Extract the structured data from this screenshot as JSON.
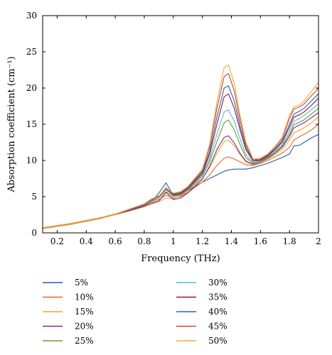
{
  "chart_data": {
    "type": "line",
    "title": "",
    "xlabel": "Frequency (THz)",
    "ylabel": "Absorption coefficient (cm⁻¹)",
    "xlim": [
      0.1,
      2.0
    ],
    "ylim": [
      0,
      30
    ],
    "x_ticks": [
      0.2,
      0.4,
      0.6,
      0.8,
      1.0,
      1.2,
      1.4,
      1.6,
      1.8,
      2.0
    ],
    "x_tick_labels": [
      "0.2",
      "0.4",
      "0.6",
      "0.8",
      "1",
      "1.2",
      "1.4",
      "1.6",
      "1.8",
      "2"
    ],
    "y_ticks": [
      0,
      5,
      10,
      15,
      20,
      25,
      30
    ],
    "y_tick_labels": [
      "0",
      "5",
      "10",
      "15",
      "20",
      "25",
      "30"
    ],
    "grid": false,
    "legend_position": "below",
    "x": [
      0.1,
      0.2,
      0.3,
      0.4,
      0.5,
      0.6,
      0.7,
      0.8,
      0.85,
      0.9,
      0.95,
      1.0,
      1.05,
      1.1,
      1.2,
      1.25,
      1.3,
      1.35,
      1.38,
      1.42,
      1.46,
      1.5,
      1.55,
      1.6,
      1.65,
      1.7,
      1.75,
      1.8,
      1.83,
      1.87,
      1.9,
      1.95,
      2.0
    ],
    "series": [
      {
        "name": "5%",
        "color": "#1f5fb0",
        "values": [
          0.6,
          0.9,
          1.2,
          1.6,
          2.0,
          2.6,
          3.1,
          3.8,
          4.3,
          5.5,
          6.9,
          5.2,
          5.3,
          5.8,
          7.0,
          7.5,
          8.0,
          8.5,
          8.7,
          8.8,
          8.8,
          8.8,
          9.0,
          9.3,
          9.6,
          10.0,
          10.4,
          10.9,
          12.0,
          12.1,
          12.5,
          13.1,
          13.6
        ]
      },
      {
        "name": "10%",
        "color": "#e8632a",
        "values": [
          0.6,
          0.9,
          1.2,
          1.6,
          2.0,
          2.6,
          3.1,
          3.8,
          4.3,
          4.6,
          5.2,
          4.8,
          5.0,
          5.6,
          7.0,
          8.0,
          9.3,
          10.3,
          10.5,
          10.2,
          9.8,
          9.4,
          9.3,
          9.6,
          10.0,
          10.5,
          11.0,
          11.8,
          12.8,
          13.3,
          13.6,
          14.2,
          15.0
        ]
      },
      {
        "name": "15%",
        "color": "#f0a030",
        "values": [
          0.6,
          0.9,
          1.2,
          1.6,
          2.0,
          2.5,
          3.0,
          3.6,
          4.0,
          4.3,
          4.8,
          4.7,
          5.1,
          5.8,
          7.5,
          9.0,
          11.0,
          12.6,
          12.8,
          12.0,
          10.8,
          9.8,
          9.4,
          9.7,
          10.2,
          10.8,
          11.5,
          12.8,
          13.8,
          14.2,
          14.5,
          15.2,
          16.0
        ]
      },
      {
        "name": "20%",
        "color": "#7b2d8e",
        "values": [
          0.7,
          1.0,
          1.3,
          1.7,
          2.1,
          2.6,
          3.1,
          3.7,
          4.1,
          4.4,
          5.6,
          4.6,
          4.8,
          5.5,
          7.4,
          9.2,
          11.5,
          13.2,
          13.4,
          12.4,
          11.0,
          9.9,
          9.5,
          9.8,
          10.3,
          11.0,
          11.8,
          13.3,
          14.5,
          14.9,
          15.2,
          15.9,
          16.6
        ]
      },
      {
        "name": "25%",
        "color": "#6a9a2e",
        "values": [
          0.7,
          1.0,
          1.3,
          1.7,
          2.1,
          2.6,
          3.2,
          3.9,
          4.4,
          4.8,
          5.7,
          5.0,
          5.2,
          5.9,
          7.8,
          9.8,
          12.6,
          15.2,
          15.6,
          14.2,
          12.2,
          10.4,
          9.6,
          9.8,
          10.4,
          11.1,
          12.0,
          13.6,
          14.9,
          15.3,
          15.6,
          16.4,
          17.2
        ]
      },
      {
        "name": "30%",
        "color": "#56b9dd",
        "values": [
          0.7,
          1.0,
          1.3,
          1.7,
          2.1,
          2.6,
          3.2,
          3.9,
          4.5,
          5.0,
          6.3,
          5.1,
          5.3,
          6.0,
          8.0,
          10.2,
          13.6,
          16.7,
          17.0,
          15.4,
          13.0,
          10.8,
          9.7,
          9.9,
          10.5,
          11.3,
          12.2,
          14.0,
          15.4,
          15.8,
          16.2,
          17.0,
          17.8
        ]
      },
      {
        "name": "35%",
        "color": "#a3102f",
        "values": [
          0.7,
          1.0,
          1.3,
          1.7,
          2.1,
          2.6,
          3.2,
          3.9,
          4.6,
          5.0,
          6.0,
          5.2,
          5.4,
          6.1,
          8.2,
          10.8,
          15.0,
          18.8,
          19.2,
          17.2,
          14.2,
          11.5,
          9.9,
          10.0,
          10.6,
          11.5,
          12.5,
          14.6,
          16.0,
          16.3,
          16.7,
          17.6,
          18.6
        ]
      },
      {
        "name": "40%",
        "color": "#1f6ab8",
        "values": [
          0.7,
          1.0,
          1.3,
          1.7,
          2.1,
          2.6,
          3.2,
          3.9,
          4.6,
          5.1,
          6.0,
          5.3,
          5.5,
          6.2,
          8.4,
          11.2,
          16.0,
          20.0,
          20.3,
          18.2,
          14.8,
          11.8,
          10.0,
          10.1,
          10.7,
          11.6,
          12.7,
          15.0,
          16.4,
          16.8,
          17.2,
          18.2,
          19.2
        ]
      },
      {
        "name": "45%",
        "color": "#d2452b",
        "values": [
          0.7,
          1.0,
          1.3,
          1.7,
          2.1,
          2.6,
          3.3,
          4.0,
          4.7,
          5.1,
          6.1,
          5.4,
          5.6,
          6.3,
          8.6,
          11.8,
          17.2,
          21.6,
          22.0,
          19.6,
          15.6,
          12.2,
          10.1,
          10.2,
          10.8,
          11.8,
          13.0,
          15.8,
          17.1,
          17.4,
          17.8,
          18.9,
          20.0
        ]
      },
      {
        "name": "50%",
        "color": "#f2a83a",
        "values": [
          0.7,
          1.0,
          1.3,
          1.7,
          2.1,
          2.6,
          3.3,
          4.0,
          4.7,
          5.1,
          6.2,
          5.5,
          5.7,
          6.4,
          8.8,
          12.2,
          18.0,
          22.8,
          23.2,
          20.6,
          16.2,
          12.5,
          10.2,
          10.3,
          10.9,
          11.9,
          13.2,
          16.2,
          17.4,
          17.7,
          18.2,
          19.5,
          20.8
        ]
      }
    ]
  }
}
